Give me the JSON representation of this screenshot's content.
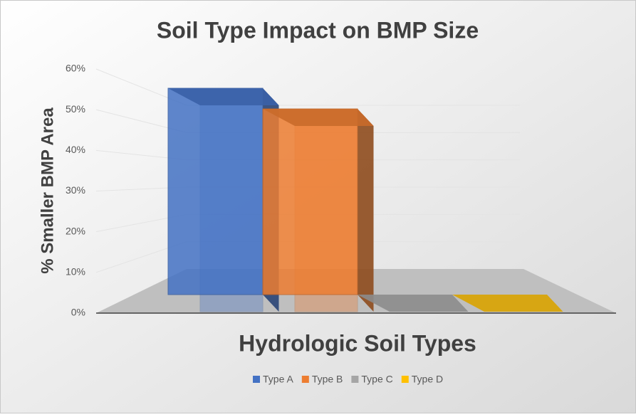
{
  "chart_data": {
    "type": "bar3d",
    "title": "Soil Type Impact on BMP Size",
    "y_label": "% Smaller  BMP Area",
    "x_label": "Hydrologic Soil Types",
    "ylim": [
      0,
      60
    ],
    "yticks": [
      {
        "value": 0,
        "label": "0%"
      },
      {
        "value": 10,
        "label": "10%"
      },
      {
        "value": 20,
        "label": "20%"
      },
      {
        "value": 30,
        "label": "30%"
      },
      {
        "value": 40,
        "label": "40%"
      },
      {
        "value": 50,
        "label": "50%"
      },
      {
        "value": 60,
        "label": "60%"
      }
    ],
    "grid": true,
    "legend": "bottom",
    "series": [
      {
        "name": "Type A",
        "color": "#4472c4",
        "values": [
          50
        ]
      },
      {
        "name": "Type B",
        "color": "#ed7d31",
        "values": [
          45
        ]
      },
      {
        "name": "Type C",
        "color": "#a5a5a5",
        "values": [
          0
        ]
      },
      {
        "name": "Type D",
        "color": "#ffc000",
        "values": [
          0
        ]
      }
    ]
  }
}
